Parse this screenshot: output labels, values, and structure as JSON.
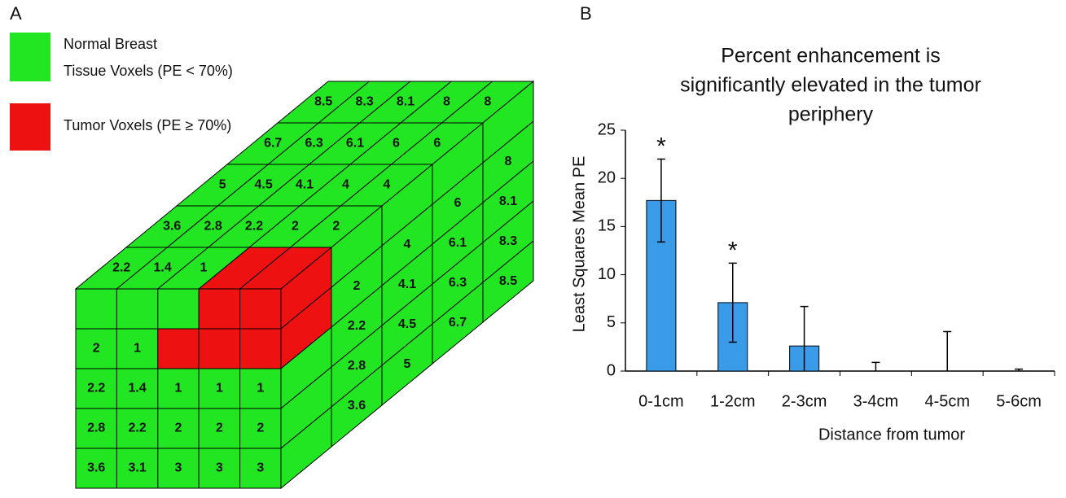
{
  "panel_labels": [
    "A",
    "B"
  ],
  "diagram": {
    "legend": [
      {
        "lines": [
          "Normal Breast",
          "Tissue Voxels (PE < 70%)"
        ],
        "color": "#22e622"
      },
      {
        "lines": [
          "Tumor Voxels (PE ≥ 70%)"
        ],
        "color": "#ee1111"
      }
    ],
    "front_face": [
      [
        null,
        null,
        null,
        null,
        null
      ],
      [
        2,
        1,
        null,
        null,
        null
      ],
      [
        2.2,
        1.4,
        1,
        1,
        1
      ],
      [
        2.8,
        2.2,
        2,
        2,
        2
      ],
      [
        3.6,
        3.1,
        3,
        3,
        3
      ]
    ],
    "top_face": [
      [
        2.2,
        1.4,
        1,
        null,
        null
      ],
      [
        3.6,
        2.8,
        2.2,
        2,
        2
      ],
      [
        5,
        4.5,
        4.1,
        4,
        4
      ],
      [
        6.7,
        6.3,
        6.1,
        6,
        6
      ],
      [
        8.5,
        8.3,
        8.1,
        8,
        8
      ]
    ],
    "side_face": [
      [
        null,
        null,
        null,
        null,
        null
      ],
      [
        null,
        2,
        2.2,
        2.8,
        3.6
      ],
      [
        null,
        4,
        4.1,
        4.5,
        5
      ],
      [
        null,
        6,
        6.1,
        6.3,
        6.7
      ],
      [
        null,
        8,
        8.1,
        8.3,
        8.5
      ]
    ]
  },
  "chart_data": {
    "type": "bar",
    "title": [
      "Percent enhancement is",
      "significantly elevated in the tumor",
      "periphery"
    ],
    "x_label": "Distance from tumor",
    "y_label": "Least Squares Mean PE",
    "categories": [
      "0-1cm",
      "1-2cm",
      "2-3cm",
      "3-4cm",
      "4-5cm",
      "5-6cm"
    ],
    "values": [
      17.7,
      7.1,
      2.6,
      0,
      0,
      0
    ],
    "errors": [
      4.3,
      4.1,
      4.1,
      0.9,
      4.1,
      0.2
    ],
    "significance": [
      "*",
      "*",
      null,
      null,
      null,
      null
    ],
    "color": "#3a9be8",
    "ylim": [
      0,
      25
    ],
    "yticks": [
      0,
      5,
      10,
      15,
      20,
      25
    ],
    "grid": false
  }
}
